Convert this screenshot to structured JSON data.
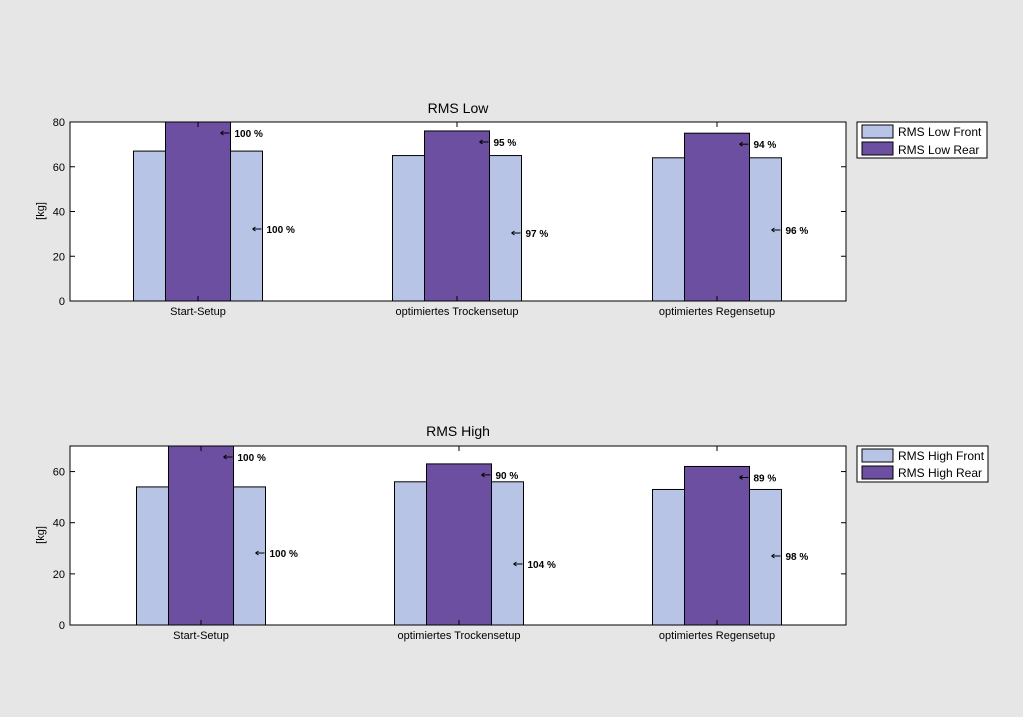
{
  "colors": {
    "figure_bg": "#e6e6e6",
    "axes_bg": "#ffffff",
    "front": "#b7c4e6",
    "rear": "#6c4fa0",
    "edge": "#000000"
  },
  "chart_data": [
    {
      "type": "bar",
      "title": "RMS Low",
      "ylabel": "[kg]",
      "xlabel": "",
      "ylim": [
        0,
        80
      ],
      "yticks": [
        0,
        20,
        40,
        60,
        80
      ],
      "grid": false,
      "legend_position": "outside-right-top",
      "categories": [
        "Start-Setup",
        "optimiertes Trockensetup",
        "optimiertes Regensetup"
      ],
      "series": [
        {
          "name": "RMS Low Front",
          "role": "front",
          "values": [
            67,
            65,
            64
          ],
          "labels": [
            "100 %",
            "97 %",
            "96 %"
          ]
        },
        {
          "name": "RMS Low Rear",
          "role": "rear",
          "values": [
            80,
            76,
            75
          ],
          "labels": [
            "100 %",
            "95 %",
            "94 %"
          ]
        }
      ]
    },
    {
      "type": "bar",
      "title": "RMS High",
      "ylabel": "[kg]",
      "xlabel": "",
      "ylim": [
        0,
        70
      ],
      "yticks": [
        0,
        20,
        40,
        60
      ],
      "grid": false,
      "legend_position": "outside-right-top",
      "categories": [
        "Start-Setup",
        "optimiertes Trockensetup",
        "optimiertes Regensetup"
      ],
      "series": [
        {
          "name": "RMS High Front",
          "role": "front",
          "values": [
            54,
            56,
            53
          ],
          "labels": [
            "100 %",
            "104 %",
            "98 %"
          ]
        },
        {
          "name": "RMS High Rear",
          "role": "rear",
          "values": [
            70,
            63,
            62
          ],
          "labels": [
            "100 %",
            "90 %",
            "89 %"
          ]
        }
      ]
    }
  ]
}
